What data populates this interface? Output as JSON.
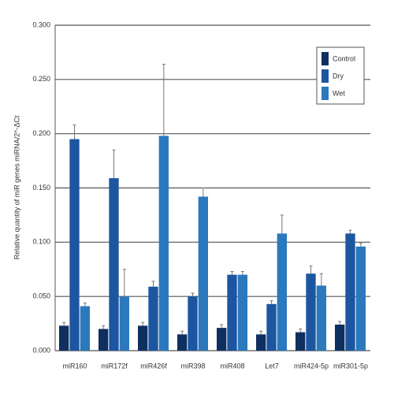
{
  "chart_data": {
    "type": "bar",
    "y_label": "Relative quantity of miR genes miRNA/2^-ΔCt",
    "categories": [
      "miR160",
      "miR172f",
      "miR426f",
      "miR398",
      "miR408",
      "Let7",
      "miR424-5p",
      "miR301-5p"
    ],
    "series": [
      {
        "name": "Control",
        "color": "#0f2f5f",
        "values": [
          0.023,
          0.02,
          0.023,
          0.015,
          0.021,
          0.015,
          0.017,
          0.024
        ],
        "errors": [
          0.003,
          0.003,
          0.003,
          0.003,
          0.003,
          0.003,
          0.003,
          0.003
        ]
      },
      {
        "name": "Dry",
        "color": "#1c56a0",
        "values": [
          0.195,
          0.159,
          0.059,
          0.05,
          0.07,
          0.043,
          0.071,
          0.108
        ],
        "errors": [
          0.013,
          0.026,
          0.005,
          0.003,
          0.003,
          0.003,
          0.007,
          0.003
        ]
      },
      {
        "name": "Wet",
        "color": "#2b78bd",
        "values": [
          0.041,
          0.05,
          0.198,
          0.142,
          0.07,
          0.108,
          0.06,
          0.096
        ],
        "errors": [
          0.003,
          0.025,
          0.066,
          0.008,
          0.003,
          0.017,
          0.011,
          0.003
        ]
      }
    ],
    "ylim": [
      0,
      0.3
    ],
    "yticks": [
      {
        "value": 0,
        "label": "0.000"
      },
      {
        "value": 0.05,
        "label": "0.050"
      },
      {
        "value": 0.1,
        "label": "0.100"
      },
      {
        "value": 0.15,
        "label": "0.150"
      },
      {
        "value": 0.2,
        "label": "0.200"
      },
      {
        "value": 0.25,
        "label": "0.250"
      },
      {
        "value": 0.3,
        "label": "0.300"
      }
    ],
    "grid": true,
    "legend": "top-right"
  }
}
